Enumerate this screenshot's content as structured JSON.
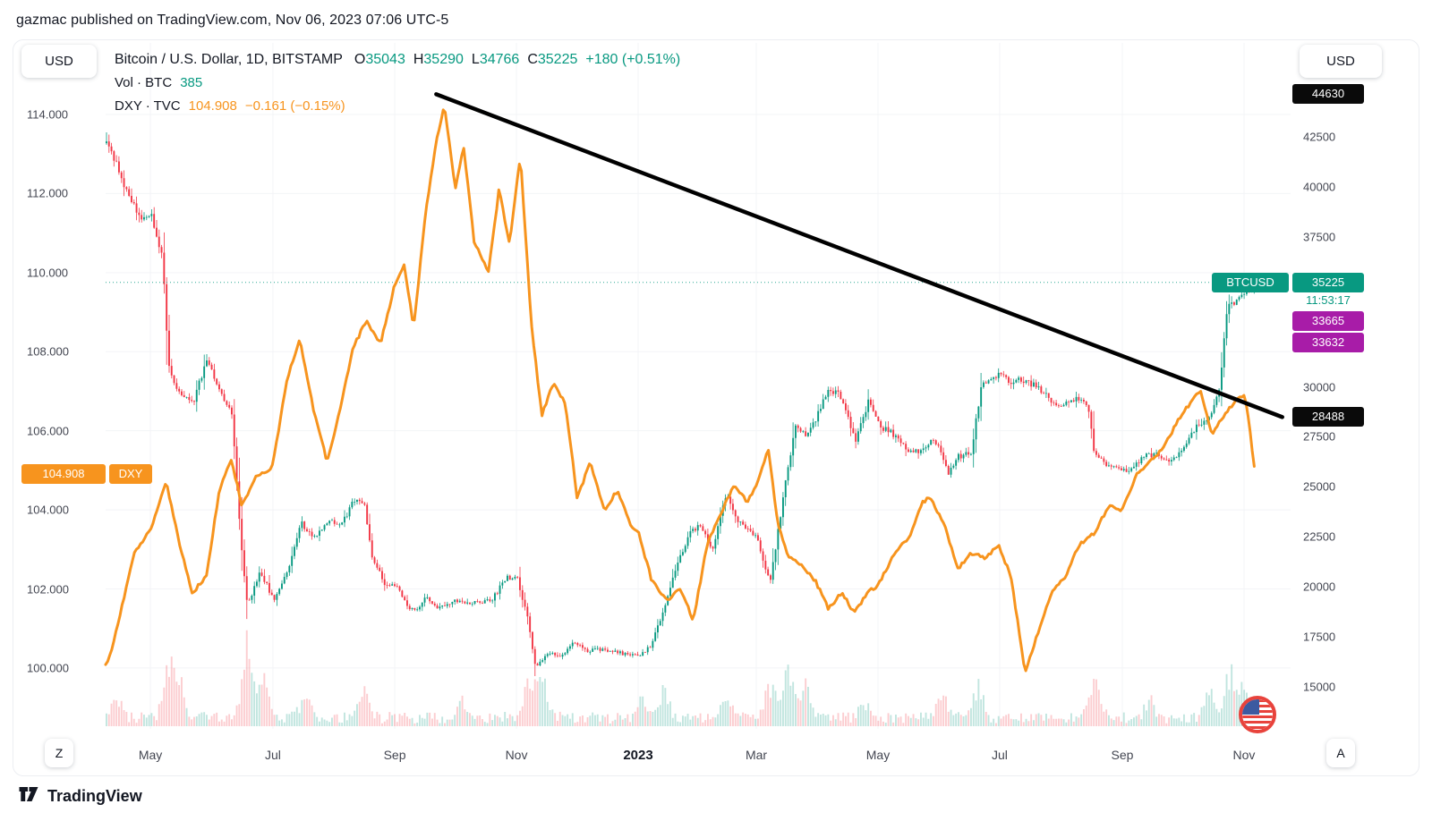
{
  "header": {
    "publisher": "gazmac published on TradingView.com, Nov 06, 2023 07:06 UTC-5"
  },
  "legend": {
    "symbol_title": "Bitcoin / U.S. Dollar, 1D, BITSTAMP",
    "ohlc": {
      "open_label": "O",
      "open": "35043",
      "high_label": "H",
      "high": "35290",
      "low_label": "L",
      "low": "34766",
      "close_label": "C",
      "close": "35225",
      "change": "+180 (+0.51%)"
    },
    "volume": {
      "label": "Vol · BTC",
      "value": "385"
    },
    "dxy": {
      "label": "DXY · TVC",
      "value": "104.908",
      "change": "−0.161 (−0.15%)"
    }
  },
  "left_scale": {
    "currency": "USD",
    "ticks": [
      {
        "label": "114.000",
        "value": 114
      },
      {
        "label": "112.000",
        "value": 112
      },
      {
        "label": "110.000",
        "value": 110
      },
      {
        "label": "108.000",
        "value": 108
      },
      {
        "label": "106.000",
        "value": 106
      },
      {
        "label": "104.000",
        "value": 104
      },
      {
        "label": "102.000",
        "value": 102
      },
      {
        "label": "100.000",
        "value": 100
      }
    ],
    "badge": {
      "label": "104.908",
      "value": 104.908,
      "bg": "#f7941e"
    },
    "tag": "DXY"
  },
  "right_scale": {
    "currency": "USD",
    "ticks": [
      {
        "label": "42500",
        "value": 42500
      },
      {
        "label": "40000",
        "value": 40000
      },
      {
        "label": "37500",
        "value": 37500
      },
      {
        "label": "30000",
        "value": 30000
      },
      {
        "label": "27500",
        "value": 27500
      },
      {
        "label": "25000",
        "value": 25000
      },
      {
        "label": "22500",
        "value": 22500
      },
      {
        "label": "20000",
        "value": 20000
      },
      {
        "label": "17500",
        "value": 17500
      },
      {
        "label": "15000",
        "value": 15000
      }
    ],
    "badges": [
      {
        "label": "44630",
        "value": 44630,
        "bg": "#0a0a0a",
        "name": "trendline-start-price-badge"
      },
      {
        "label": "35225",
        "value": 35225,
        "bg": "#089981",
        "name": "btcusd-last-price-badge",
        "tag": "BTCUSD",
        "countdown": "11:53:17"
      },
      {
        "label": "33665",
        "value": 33665,
        "bg": "#a81ca8",
        "name": "level-33665-badge"
      },
      {
        "label": "33632",
        "value": 33632,
        "bg": "#a81ca8",
        "name": "level-33632-badge"
      },
      {
        "label": "28488",
        "value": 28488,
        "bg": "#0a0a0a",
        "name": "trendline-end-price-badge"
      }
    ]
  },
  "time_scale": {
    "zoom_out": "Z",
    "zoom_in": "A",
    "ticks": [
      {
        "label": "May",
        "t": 0.0378
      },
      {
        "label": "Jul",
        "t": 0.1412
      },
      {
        "label": "Sep",
        "t": 0.244
      },
      {
        "label": "Nov",
        "t": 0.3467
      },
      {
        "label": "2023",
        "t": 0.4494,
        "emphasis": true
      },
      {
        "label": "Mar",
        "t": 0.5491
      },
      {
        "label": "May",
        "t": 0.6518
      },
      {
        "label": "Jul",
        "t": 0.7545
      },
      {
        "label": "Sep",
        "t": 0.858
      },
      {
        "label": "Nov",
        "t": 0.9607
      }
    ]
  },
  "footer": {
    "brand": "TradingView"
  },
  "chart_data": {
    "type": "candlestick",
    "title": "Bitcoin / U.S. Dollar, 1D, BITSTAMP",
    "x_range": [
      "Apr 2022",
      "Nov 2023"
    ],
    "legend_position": "top-left",
    "grid": "faint",
    "left_axis": {
      "name": "DXY (U.S. Dollar Index)",
      "ylim": [
        98.46,
        115.81
      ],
      "ticks": [
        100,
        102,
        104,
        106,
        108,
        110,
        112,
        114
      ]
    },
    "right_axis": {
      "name": "BTCUSD",
      "ylim": [
        12898,
        47195
      ],
      "ticks": [
        15000,
        17500,
        20000,
        22500,
        25000,
        27500,
        30000,
        37500,
        40000,
        42500
      ]
    },
    "series": [
      {
        "name": "BTCUSD",
        "type": "candlestick",
        "scale": "right",
        "up_color": "#089981",
        "down_color": "#f23645",
        "last": {
          "open": 35043,
          "high": 35290,
          "low": 34766,
          "close": 35225,
          "change": "+180 (+0.51%)",
          "volume_btc": 385
        },
        "samples": [
          [
            0.0,
            42500
          ],
          [
            0.017,
            39800
          ],
          [
            0.028,
            38600
          ],
          [
            0.038,
            38500
          ],
          [
            0.047,
            36500
          ],
          [
            0.053,
            30800
          ],
          [
            0.062,
            29500
          ],
          [
            0.073,
            29200
          ],
          [
            0.085,
            31400
          ],
          [
            0.096,
            29800
          ],
          [
            0.106,
            28600
          ],
          [
            0.113,
            22500
          ],
          [
            0.119,
            19000
          ],
          [
            0.13,
            20800
          ],
          [
            0.141,
            19300
          ],
          [
            0.153,
            20800
          ],
          [
            0.164,
            23200
          ],
          [
            0.175,
            22500
          ],
          [
            0.187,
            23300
          ],
          [
            0.198,
            23000
          ],
          [
            0.209,
            24400
          ],
          [
            0.217,
            24300
          ],
          [
            0.224,
            21500
          ],
          [
            0.236,
            20000
          ],
          [
            0.244,
            20100
          ],
          [
            0.254,
            19000
          ],
          [
            0.262,
            18800
          ],
          [
            0.27,
            19500
          ],
          [
            0.281,
            18900
          ],
          [
            0.292,
            19300
          ],
          [
            0.304,
            19150
          ],
          [
            0.315,
            19200
          ],
          [
            0.326,
            19400
          ],
          [
            0.338,
            20500
          ],
          [
            0.347,
            20400
          ],
          [
            0.356,
            18300
          ],
          [
            0.362,
            16000
          ],
          [
            0.372,
            16700
          ],
          [
            0.383,
            16500
          ],
          [
            0.394,
            17200
          ],
          [
            0.406,
            16800
          ],
          [
            0.417,
            16900
          ],
          [
            0.428,
            16800
          ],
          [
            0.44,
            16600
          ],
          [
            0.449,
            16600
          ],
          [
            0.459,
            17000
          ],
          [
            0.47,
            18800
          ],
          [
            0.481,
            21000
          ],
          [
            0.492,
            22700
          ],
          [
            0.501,
            23100
          ],
          [
            0.511,
            21800
          ],
          [
            0.523,
            24600
          ],
          [
            0.534,
            23200
          ],
          [
            0.549,
            22400
          ],
          [
            0.56,
            20200
          ],
          [
            0.572,
            24800
          ],
          [
            0.581,
            28000
          ],
          [
            0.591,
            27500
          ],
          [
            0.599,
            28500
          ],
          [
            0.61,
            30000
          ],
          [
            0.621,
            29400
          ],
          [
            0.632,
            27300
          ],
          [
            0.643,
            29300
          ],
          [
            0.652,
            28100
          ],
          [
            0.662,
            27700
          ],
          [
            0.674,
            26900
          ],
          [
            0.685,
            26800
          ],
          [
            0.696,
            27200
          ],
          [
            0.703,
            27100
          ],
          [
            0.71,
            25700
          ],
          [
            0.719,
            26500
          ],
          [
            0.73,
            26800
          ],
          [
            0.738,
            30000
          ],
          [
            0.745,
            30500
          ],
          [
            0.754,
            30600
          ],
          [
            0.764,
            30300
          ],
          [
            0.776,
            30300
          ],
          [
            0.787,
            29900
          ],
          [
            0.798,
            29200
          ],
          [
            0.806,
            29200
          ],
          [
            0.817,
            29400
          ],
          [
            0.828,
            29100
          ],
          [
            0.834,
            26600
          ],
          [
            0.844,
            26050
          ],
          [
            0.858,
            25950
          ],
          [
            0.866,
            25800
          ],
          [
            0.874,
            26500
          ],
          [
            0.885,
            26600
          ],
          [
            0.896,
            26200
          ],
          [
            0.909,
            27000
          ],
          [
            0.919,
            27950
          ],
          [
            0.93,
            28400
          ],
          [
            0.939,
            29900
          ],
          [
            0.946,
            33900
          ],
          [
            0.952,
            34150
          ],
          [
            0.957,
            34500
          ],
          [
            0.962,
            34950
          ],
          [
            0.967,
            35100
          ],
          [
            0.97,
            35225
          ]
        ]
      },
      {
        "name": "DXY",
        "type": "line",
        "scale": "left",
        "color": "#f7941e",
        "last": {
          "value": 104.908,
          "change": "−0.161 (−0.15%)"
        },
        "samples": [
          [
            0.0,
            100.1
          ],
          [
            0.005,
            100.4
          ],
          [
            0.024,
            102.9
          ],
          [
            0.038,
            103.5
          ],
          [
            0.051,
            104.7
          ],
          [
            0.062,
            103.2
          ],
          [
            0.073,
            101.9
          ],
          [
            0.085,
            102.3
          ],
          [
            0.096,
            104.5
          ],
          [
            0.106,
            105.3
          ],
          [
            0.115,
            104.1
          ],
          [
            0.126,
            104.8
          ],
          [
            0.141,
            105.1
          ],
          [
            0.153,
            107.3
          ],
          [
            0.164,
            108.3
          ],
          [
            0.175,
            106.6
          ],
          [
            0.187,
            105.2
          ],
          [
            0.196,
            106.3
          ],
          [
            0.209,
            108.1
          ],
          [
            0.22,
            108.8
          ],
          [
            0.232,
            108.2
          ],
          [
            0.244,
            109.7
          ],
          [
            0.252,
            110.2
          ],
          [
            0.26,
            108.6
          ],
          [
            0.27,
            111.5
          ],
          [
            0.279,
            113.3
          ],
          [
            0.286,
            114.25
          ],
          [
            0.295,
            112.1
          ],
          [
            0.302,
            113.2
          ],
          [
            0.311,
            110.8
          ],
          [
            0.323,
            110.0
          ],
          [
            0.332,
            112.1
          ],
          [
            0.341,
            110.7
          ],
          [
            0.35,
            113.0
          ],
          [
            0.359,
            108.8
          ],
          [
            0.368,
            106.4
          ],
          [
            0.378,
            107.2
          ],
          [
            0.388,
            106.7
          ],
          [
            0.398,
            104.3
          ],
          [
            0.409,
            105.2
          ],
          [
            0.421,
            104.0
          ],
          [
            0.432,
            104.5
          ],
          [
            0.443,
            103.6
          ],
          [
            0.449,
            103.5
          ],
          [
            0.461,
            102.2
          ],
          [
            0.474,
            101.7
          ],
          [
            0.485,
            102.0
          ],
          [
            0.496,
            101.2
          ],
          [
            0.508,
            103.2
          ],
          [
            0.519,
            103.9
          ],
          [
            0.53,
            104.6
          ],
          [
            0.542,
            104.2
          ],
          [
            0.553,
            104.9
          ],
          [
            0.559,
            105.6
          ],
          [
            0.567,
            103.7
          ],
          [
            0.576,
            102.8
          ],
          [
            0.587,
            102.6
          ],
          [
            0.599,
            102.2
          ],
          [
            0.61,
            101.5
          ],
          [
            0.621,
            101.9
          ],
          [
            0.632,
            101.4
          ],
          [
            0.643,
            101.9
          ],
          [
            0.652,
            102.1
          ],
          [
            0.666,
            102.9
          ],
          [
            0.678,
            103.3
          ],
          [
            0.689,
            104.2
          ],
          [
            0.696,
            104.3
          ],
          [
            0.708,
            103.6
          ],
          [
            0.719,
            102.5
          ],
          [
            0.73,
            102.9
          ],
          [
            0.742,
            102.8
          ],
          [
            0.754,
            103.1
          ],
          [
            0.764,
            102.3
          ],
          [
            0.776,
            99.9
          ],
          [
            0.787,
            100.9
          ],
          [
            0.798,
            101.9
          ],
          [
            0.81,
            102.3
          ],
          [
            0.821,
            103.1
          ],
          [
            0.834,
            103.4
          ],
          [
            0.847,
            104.1
          ],
          [
            0.858,
            104.0
          ],
          [
            0.87,
            104.9
          ],
          [
            0.881,
            105.2
          ],
          [
            0.893,
            105.6
          ],
          [
            0.904,
            106.2
          ],
          [
            0.915,
            106.7
          ],
          [
            0.924,
            107.0
          ],
          [
            0.934,
            105.9
          ],
          [
            0.942,
            106.3
          ],
          [
            0.952,
            106.7
          ],
          [
            0.961,
            106.9
          ],
          [
            0.965,
            106.2
          ],
          [
            0.97,
            104.908
          ]
        ]
      }
    ],
    "trendline": {
      "color": "#000000",
      "from": [
        0.279,
        44630
      ],
      "to": [
        0.993,
        28488
      ]
    },
    "price_line": {
      "value": 35225,
      "color": "#089981",
      "style": "dotted"
    },
    "volume": {
      "color_up": "rgba(8,153,129,0.25)",
      "color_down": "rgba(242,54,69,0.25)",
      "note": "relative spike heights in px at time fraction t",
      "spikes": [
        [
          0.008,
          25
        ],
        [
          0.053,
          70
        ],
        [
          0.062,
          38
        ],
        [
          0.119,
          95
        ],
        [
          0.133,
          45
        ],
        [
          0.168,
          28
        ],
        [
          0.217,
          32
        ],
        [
          0.3,
          22
        ],
        [
          0.358,
          60
        ],
        [
          0.368,
          42
        ],
        [
          0.452,
          28
        ],
        [
          0.47,
          33
        ],
        [
          0.523,
          25
        ],
        [
          0.56,
          42
        ],
        [
          0.575,
          55
        ],
        [
          0.59,
          38
        ],
        [
          0.64,
          22
        ],
        [
          0.705,
          28
        ],
        [
          0.735,
          36
        ],
        [
          0.834,
          45
        ],
        [
          0.88,
          22
        ],
        [
          0.932,
          28
        ],
        [
          0.948,
          55
        ],
        [
          0.96,
          35
        ]
      ]
    }
  }
}
